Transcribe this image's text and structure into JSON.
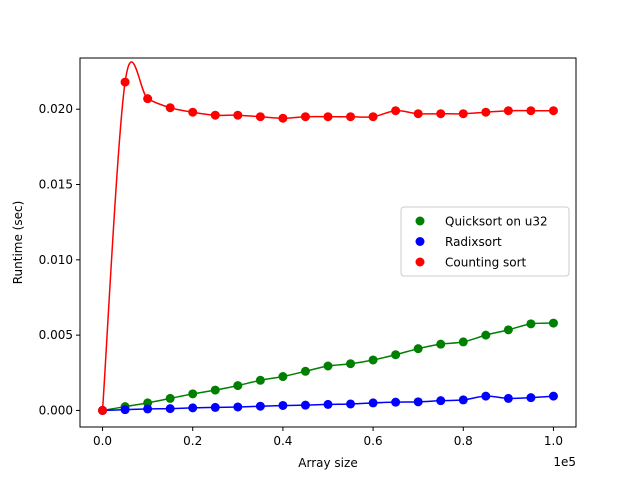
{
  "chart_data": {
    "type": "line",
    "title": "",
    "xlabel": "Array size",
    "ylabel": "Runtime (sec)",
    "x_offset_label": "1e5",
    "xlim": [
      -0.05,
      1.05
    ],
    "ylim": [
      -0.0011,
      0.0234
    ],
    "xticks": [
      {
        "value": 0.0,
        "label": "0.0"
      },
      {
        "value": 0.2,
        "label": "0.2"
      },
      {
        "value": 0.4,
        "label": "0.4"
      },
      {
        "value": 0.6,
        "label": "0.6"
      },
      {
        "value": 0.8,
        "label": "0.8"
      },
      {
        "value": 1.0,
        "label": "1.0"
      }
    ],
    "yticks": [
      {
        "value": 0.0,
        "label": "0.000"
      },
      {
        "value": 0.005,
        "label": "0.005"
      },
      {
        "value": 0.01,
        "label": "0.010"
      },
      {
        "value": 0.015,
        "label": "0.015"
      },
      {
        "value": 0.02,
        "label": "0.020"
      }
    ],
    "grid": false,
    "legend_position": "center-right",
    "x": [
      0,
      0.05,
      0.1,
      0.15,
      0.2,
      0.25,
      0.3,
      0.35,
      0.4,
      0.45,
      0.5,
      0.55,
      0.6,
      0.65,
      0.7,
      0.75,
      0.8,
      0.85,
      0.9,
      0.95,
      1.0
    ],
    "series": [
      {
        "name": "Quicksort on u32",
        "color": "#008000",
        "values": [
          0.0,
          0.00025,
          0.0005,
          0.0008,
          0.0011,
          0.00135,
          0.00165,
          0.002,
          0.00225,
          0.0026,
          0.00295,
          0.0031,
          0.00335,
          0.0037,
          0.0041,
          0.0044,
          0.00455,
          0.005,
          0.00535,
          0.00575,
          0.0058
        ]
      },
      {
        "name": "Radixsort",
        "color": "#0000ff",
        "values": [
          0.0,
          5e-05,
          0.0001,
          0.00012,
          0.00017,
          0.0002,
          0.00023,
          0.00028,
          0.00033,
          0.00035,
          0.0004,
          0.00043,
          0.0005,
          0.00055,
          0.00057,
          0.00065,
          0.0007,
          0.00095,
          0.0008,
          0.00085,
          0.00095
        ]
      },
      {
        "name": "Counting sort",
        "color": "#ff0000",
        "values": [
          0.0,
          0.0218,
          0.0207,
          0.0201,
          0.0198,
          0.0196,
          0.0196,
          0.0195,
          0.0194,
          0.0195,
          0.0195,
          0.0195,
          0.0195,
          0.0199,
          0.0197,
          0.0197,
          0.0197,
          0.0198,
          0.0199,
          0.0199,
          0.0199
        ]
      }
    ]
  }
}
